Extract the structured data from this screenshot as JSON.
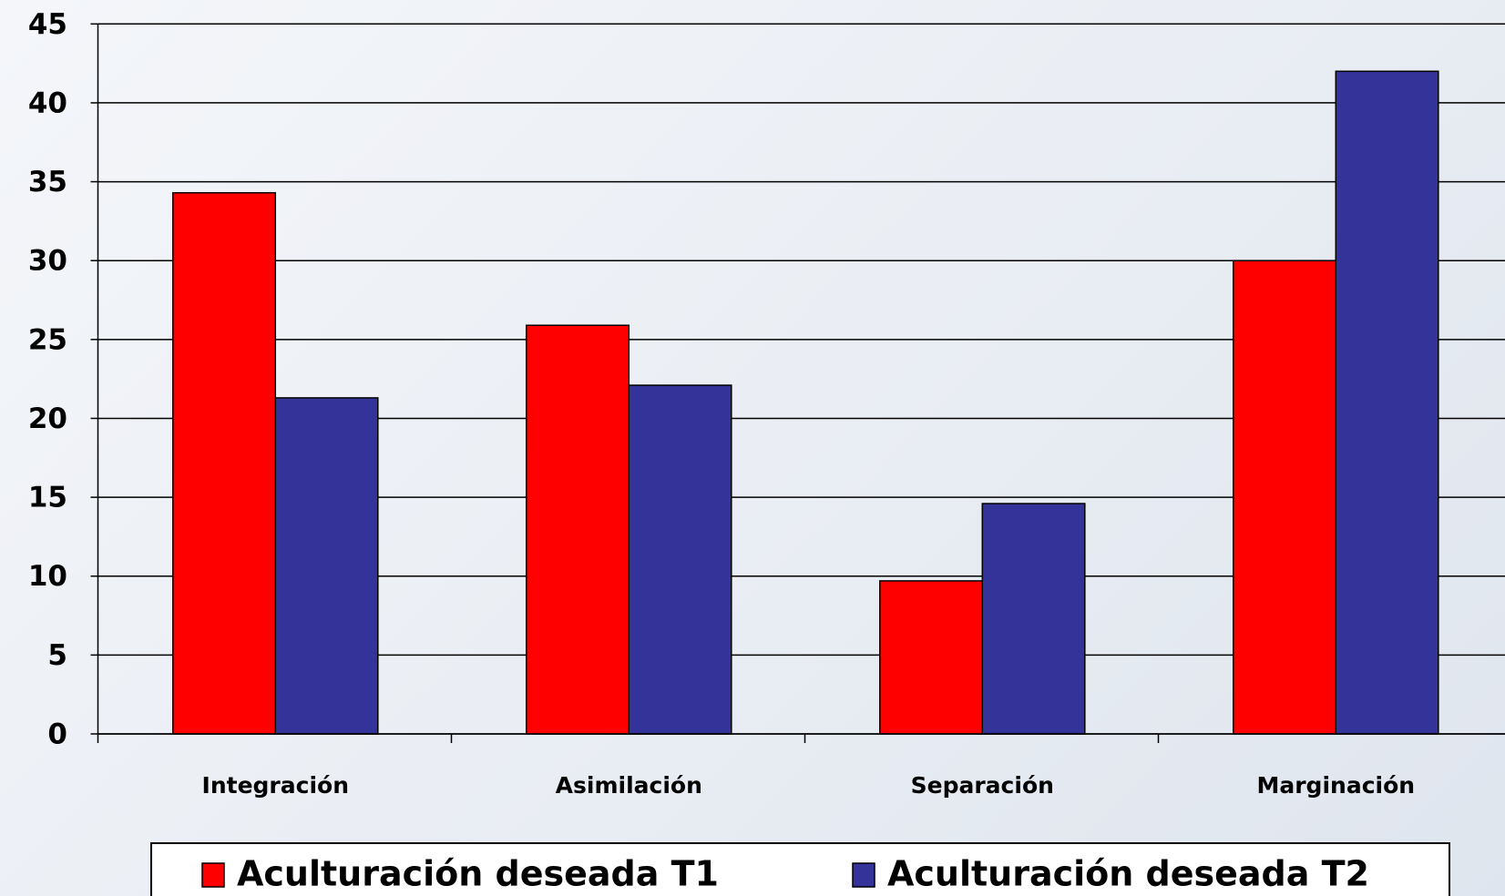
{
  "chart_data": {
    "type": "bar",
    "categories": [
      "Integración",
      "Asimilación",
      "Separación",
      "Marginación"
    ],
    "series": [
      {
        "name": "Aculturación deseada T1",
        "color": "#ff0000",
        "values": [
          34.3,
          25.9,
          9.7,
          30
        ]
      },
      {
        "name": "Aculturación deseada T2",
        "color": "#333399",
        "values": [
          21.3,
          22.1,
          14.6,
          42
        ]
      }
    ],
    "ylim": [
      0,
      45
    ],
    "yticks": [
      0,
      5,
      10,
      15,
      20,
      25,
      30,
      35,
      40,
      45
    ],
    "grid": true,
    "legend": "bottom"
  }
}
